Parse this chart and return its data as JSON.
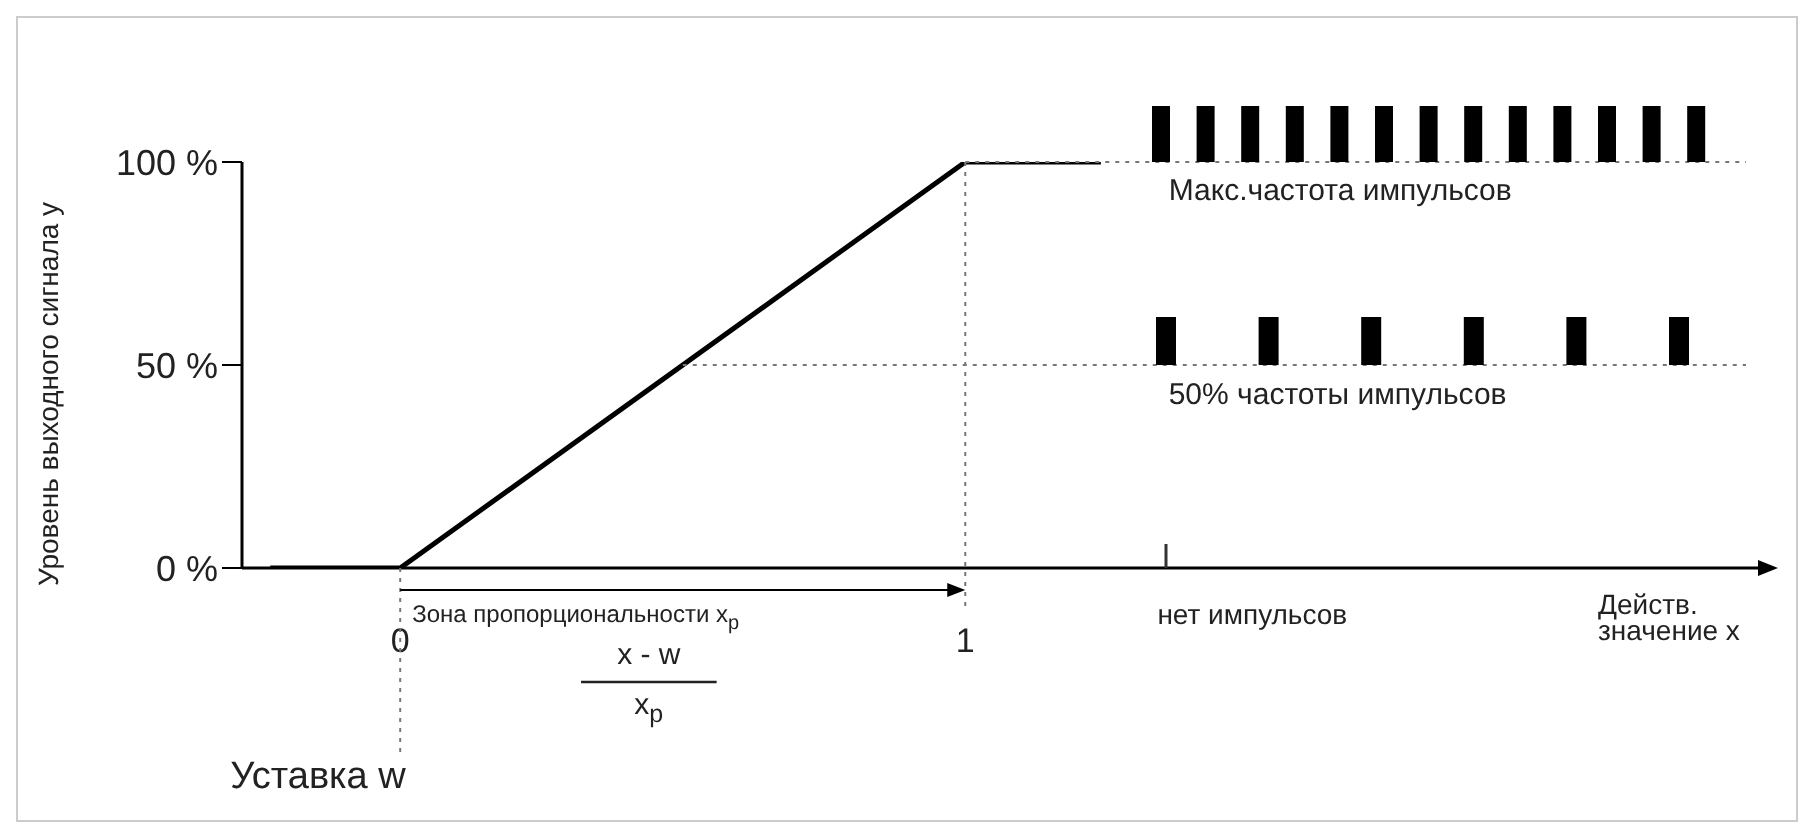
{
  "chart_data": {
    "type": "line",
    "ylabel": "Уровень выходного сигнала y",
    "series": [
      {
        "color": "#000000",
        "x": [
          -0.23,
          0,
          1,
          1.24
        ],
        "values": [
          0,
          0,
          100,
          100
        ]
      }
    ],
    "xlim": [
      -0.28,
      2.41
    ],
    "xticks": [
      0,
      1
    ],
    "ylim": [
      0,
      100
    ],
    "yticks": [
      {
        "value": 0,
        "label": "0 %"
      },
      {
        "value": 50,
        "label": "50 %"
      },
      {
        "value": 100,
        "label": "100 %"
      }
    ],
    "marker": "none",
    "line_style": "solid",
    "grid": false,
    "ref_lines": [
      {
        "axis": "y",
        "value": 100,
        "label": "Макс.частота импульсов",
        "line_style": "dotted",
        "color": "#777777"
      },
      {
        "axis": "y",
        "value": 50,
        "label": "50% частоты импульсов",
        "line_style": "dotted",
        "color": "#777777"
      },
      {
        "axis": "x",
        "value": 0,
        "label": "Уставка w",
        "line_style": "dotted",
        "color": "#777777"
      },
      {
        "axis": "x",
        "value": 1,
        "label": null,
        "line_style": "dotted",
        "color": "#777777"
      }
    ],
    "annotations": [
      "Зона пропорциональности x$_{p}$",
      "x - w",
      "x$_{p}$",
      "нет импульсов",
      "Действ. значение x"
    ]
  }
}
